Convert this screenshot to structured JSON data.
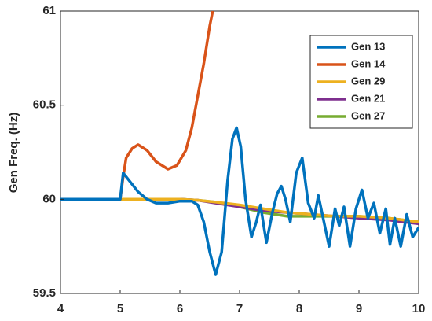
{
  "chart_data": {
    "type": "line",
    "ylabel": "Gen Freq. (Hz)",
    "xlim": [
      4,
      10
    ],
    "xticks": [
      4,
      5,
      6,
      7,
      8,
      9,
      10
    ],
    "ylim": [
      59.5,
      61
    ],
    "yticks": [
      59.5,
      60,
      60.5,
      61
    ],
    "grid": false,
    "legend": "top-right",
    "series": [
      {
        "name": "Gen 13",
        "color": "#0072bd",
        "x": [
          4,
          5,
          5.05,
          5.15,
          5.3,
          5.45,
          5.6,
          5.8,
          6.0,
          6.2,
          6.3,
          6.4,
          6.5,
          6.6,
          6.7,
          6.8,
          6.88,
          6.95,
          7.02,
          7.1,
          7.2,
          7.28,
          7.35,
          7.45,
          7.55,
          7.63,
          7.7,
          7.77,
          7.85,
          7.95,
          8.05,
          8.15,
          8.25,
          8.32,
          8.4,
          8.5,
          8.6,
          8.67,
          8.75,
          8.85,
          8.95,
          9.05,
          9.15,
          9.25,
          9.35,
          9.45,
          9.52,
          9.6,
          9.7,
          9.8,
          9.9,
          10
        ],
        "values": [
          60,
          60,
          60.14,
          60.1,
          60.04,
          60.0,
          59.98,
          59.98,
          59.99,
          59.99,
          59.97,
          59.88,
          59.72,
          59.6,
          59.72,
          60.1,
          60.32,
          60.38,
          60.28,
          60.0,
          59.8,
          59.88,
          59.97,
          59.77,
          59.93,
          60.03,
          60.07,
          60.0,
          59.88,
          60.14,
          60.22,
          59.98,
          59.9,
          60.02,
          59.9,
          59.75,
          59.95,
          59.86,
          59.96,
          59.75,
          59.95,
          60.05,
          59.9,
          59.98,
          59.82,
          59.95,
          59.76,
          59.9,
          59.75,
          59.92,
          59.8,
          59.85
        ]
      },
      {
        "name": "Gen 14",
        "color": "#d95319",
        "x": [
          4,
          5,
          5.05,
          5.1,
          5.2,
          5.3,
          5.45,
          5.6,
          5.8,
          5.95,
          6.1,
          6.2,
          6.3,
          6.4,
          6.5,
          6.55
        ],
        "values": [
          60,
          60,
          60.12,
          60.22,
          60.27,
          60.29,
          60.26,
          60.2,
          60.16,
          60.18,
          60.26,
          60.38,
          60.55,
          60.72,
          60.92,
          61
        ]
      },
      {
        "name": "Gen 29",
        "color": "#edb120",
        "x": [
          4,
          6.0,
          6.3,
          6.6,
          7.0,
          7.4,
          7.8,
          8.2,
          8.6,
          9.0,
          9.5,
          10
        ],
        "values": [
          60,
          60,
          59.995,
          59.985,
          59.97,
          59.95,
          59.93,
          59.92,
          59.91,
          59.91,
          59.9,
          59.88
        ]
      },
      {
        "name": "Gen 21",
        "color": "#7e2f8e",
        "x": [
          4,
          6.0,
          6.3,
          6.6,
          7.0,
          7.4,
          7.8,
          8.2,
          8.6,
          9.0,
          9.5,
          10
        ],
        "values": [
          60,
          60,
          59.995,
          59.98,
          59.96,
          59.94,
          59.93,
          59.92,
          59.91,
          59.9,
          59.89,
          59.87
        ]
      },
      {
        "name": "Gen 27",
        "color": "#77ac30",
        "x": [
          4,
          6.0,
          6.3,
          6.6,
          7.0,
          7.4,
          7.8,
          8.2,
          8.6,
          9.0,
          9.5,
          10
        ],
        "values": [
          60,
          60,
          59.995,
          59.985,
          59.96,
          59.93,
          59.91,
          59.91,
          59.91,
          59.91,
          59.9,
          59.88
        ]
      }
    ]
  }
}
